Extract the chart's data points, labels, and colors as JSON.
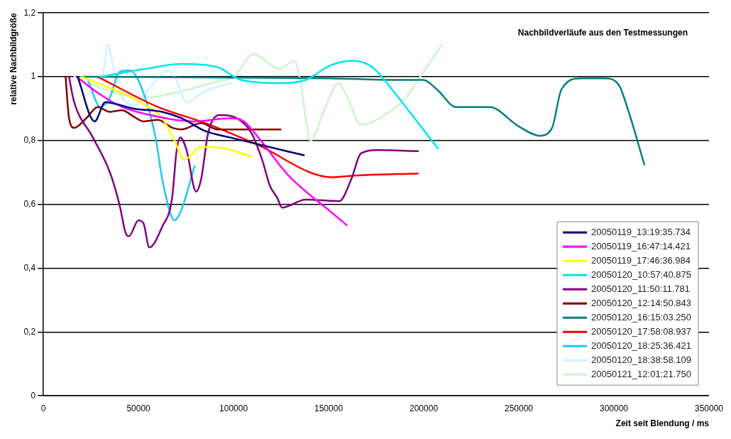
{
  "chart_data": {
    "type": "line",
    "title": "Nachbildverläufe aus den Testmessungen",
    "xlabel": "Zeit seit Blendung / ms",
    "ylabel": "relative Nachbildgröße",
    "xlim": [
      0,
      350000
    ],
    "xticks": [
      0,
      50000,
      100000,
      150000,
      200000,
      250000,
      300000,
      350000
    ],
    "ylim": [
      0,
      1.2
    ],
    "yticks": [
      {
        "value": 0,
        "label": "0"
      },
      {
        "value": 0.2,
        "label": "0,2"
      },
      {
        "value": 0.4,
        "label": "0,4"
      },
      {
        "value": 0.6,
        "label": "0,6"
      },
      {
        "value": 0.8,
        "label": "0,8"
      },
      {
        "value": 1,
        "label": "1"
      },
      {
        "value": 1.2,
        "label": "1,2"
      }
    ],
    "grid": "y",
    "legend": "bottom right",
    "marker": "none",
    "line_style": "solid",
    "series": [
      {
        "name": "20050119_13:19:35.734",
        "color": "#000080",
        "x": [
          18000,
          27000,
          32500,
          47500,
          62500,
          72700,
          85000,
          98000,
          129000,
          137000
        ],
        "values": [
          1.0,
          0.86,
          0.92,
          0.9,
          0.89,
          0.87,
          0.83,
          0.81,
          0.765,
          0.754
        ]
      },
      {
        "name": "20050119_16:47:14.421",
        "color": "#ff00ff",
        "x": [
          17500,
          28500,
          41500,
          60000,
          79000,
          98000,
          105500,
          113000,
          129000,
          152500,
          159500
        ],
        "values": [
          1.0,
          0.95,
          0.905,
          0.875,
          0.86,
          0.87,
          0.86,
          0.81,
          0.69,
          0.57,
          0.535
        ]
      },
      {
        "name": "20050119_17:46:36.984",
        "color": "#ffff00",
        "x": [
          20000,
          39000,
          51000,
          62500,
          69000,
          74000,
          83000,
          95500,
          109000
        ],
        "values": [
          1.0,
          0.955,
          0.92,
          0.87,
          0.8,
          0.74,
          0.78,
          0.775,
          0.75
        ]
      },
      {
        "name": "20050120_10:57:40.875",
        "color": "#00e5f0",
        "x": [
          30000,
          54000,
          72700,
          91500,
          104000,
          125500,
          138000,
          150700,
          163000,
          173000,
          182000,
          194500,
          207500
        ],
        "values": [
          1.0,
          1.025,
          1.04,
          1.03,
          0.99,
          0.98,
          0.99,
          1.035,
          1.05,
          1.03,
          0.97,
          0.875,
          0.775
        ]
      },
      {
        "name": "20050120_11:50:11.781",
        "color": "#800080",
        "x": [
          13500,
          16000,
          26000,
          35000,
          40000,
          43300,
          45000,
          50000,
          52700,
          55700,
          62500,
          67700,
          70000,
          72000,
          75300,
          80300,
          83000,
          86700,
          92700,
          101700,
          109300,
          115300,
          119000,
          123000,
          125500,
          138000,
          155600,
          162000,
          167000,
          175600,
          197000
        ],
        "values": [
          1.0,
          0.925,
          0.81,
          0.7,
          0.6,
          0.51,
          0.5,
          0.55,
          0.54,
          0.465,
          0.53,
          0.62,
          0.765,
          0.81,
          0.77,
          0.64,
          0.68,
          0.825,
          0.88,
          0.87,
          0.825,
          0.735,
          0.66,
          0.62,
          0.59,
          0.615,
          0.61,
          0.68,
          0.76,
          0.77,
          0.767
        ]
      },
      {
        "name": "20050120_12:14:50.843",
        "color": "#800000",
        "x": [
          11700,
          13500,
          16200,
          22600,
          28600,
          35000,
          41400,
          47500,
          52700,
          60300,
          67800,
          72700,
          83000,
          91500,
          124700
        ],
        "values": [
          1.0,
          0.87,
          0.84,
          0.87,
          0.905,
          0.89,
          0.895,
          0.875,
          0.86,
          0.865,
          0.84,
          0.835,
          0.855,
          0.835,
          0.835
        ]
      },
      {
        "name": "20050120_16:15:03.250",
        "color": "#008080",
        "x": [
          20000,
          150000,
          188300,
          199700,
          207000,
          217000,
          234700,
          249800,
          261000,
          267500,
          272400,
          282500,
          295000,
          302500,
          307500,
          316000
        ],
        "values": [
          1.0,
          0.995,
          0.99,
          0.99,
          0.96,
          0.905,
          0.905,
          0.845,
          0.815,
          0.84,
          0.96,
          0.995,
          0.995,
          0.975,
          0.895,
          0.725
        ]
      },
      {
        "name": "20050120_17:58:08.937",
        "color": "#ff0000",
        "x": [
          28600,
          60300,
          85000,
          111500,
          151800,
          163000,
          197000
        ],
        "values": [
          1.0,
          0.905,
          0.855,
          0.79,
          0.685,
          0.69,
          0.697
        ]
      },
      {
        "name": "20050120_18:25:36.421",
        "color": "#22c8f5",
        "x": [
          23700,
          30000,
          35000,
          40000,
          45000,
          49000,
          54000,
          59000,
          62500,
          69000,
          72700,
          79500
        ],
        "values": [
          0.985,
          0.905,
          0.935,
          1.015,
          1.02,
          1.0,
          0.925,
          0.81,
          0.68,
          0.55,
          0.585,
          0.72
        ]
      },
      {
        "name": "20050120_18:38:58.109",
        "color": "#ccf5ff",
        "x": [
          31300,
          34000,
          36300,
          40000,
          47500,
          56500,
          65200,
          70000,
          75300,
          85000,
          99000
        ],
        "values": [
          1.0,
          1.1,
          1.045,
          0.955,
          0.91,
          0.97,
          1.02,
          0.99,
          0.92,
          0.955,
          0.98
        ]
      },
      {
        "name": "20050121_12:01:21.750",
        "color": "#ccf5cc",
        "x": [
          16200,
          35000,
          54000,
          72700,
          91500,
          100200,
          110400,
          124300,
          132000,
          135000,
          140500,
          148000,
          155000,
          159500,
          167000,
          182000,
          190700,
          198200,
          209500
        ],
        "values": [
          1.0,
          0.955,
          0.935,
          0.955,
          0.985,
          1.0,
          1.07,
          1.025,
          1.05,
          0.99,
          0.8,
          0.9,
          0.98,
          0.94,
          0.85,
          0.89,
          0.935,
          1.0,
          1.1
        ]
      }
    ]
  }
}
